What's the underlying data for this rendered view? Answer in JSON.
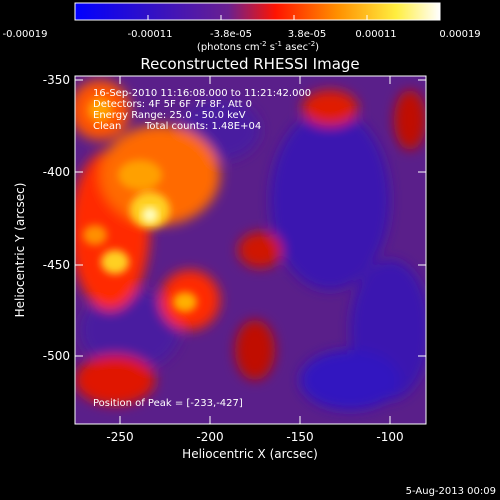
{
  "colorbar": {
    "tick_labels": [
      "-0.00019",
      "-0.00011",
      "-3.8e-05",
      "3.8e-05",
      "0.00011",
      "0.00019"
    ],
    "unit_line1": "(photons cm",
    "unit_exp1": "-2",
    "unit_mid": " s",
    "unit_exp2": "-1",
    "unit_mid2": " asec",
    "unit_exp3": "-2",
    "unit_end": ")"
  },
  "plot": {
    "title": "Reconstructed RHESSI Image",
    "xlabel": "Heliocentric X (arcsec)",
    "ylabel": "Heliocentric Y (arcsec)",
    "x_ticks": [
      "-250",
      "-200",
      "-150",
      "-100"
    ],
    "y_ticks": [
      "-350",
      "-400",
      "-450",
      "-500"
    ],
    "xlim": [
      -275,
      -80
    ],
    "ylim": [
      -538,
      -345
    ]
  },
  "annotations": {
    "line1": "16-Sep-2010 11:16:08.000 to 11:21:42.000",
    "line2": "Detectors: 4F 5F 6F 7F 8F, Att 0",
    "line3": "Energy Range: 25.0 - 50.0 keV",
    "line4_a": "Clean",
    "line4_b": "Total counts: 1.48E+04",
    "peak": "Position of Peak = [-233,-427]"
  },
  "footer": {
    "date": "5-Aug-2013 00:09"
  },
  "colors": {
    "background": "#000000",
    "colorbar_stops": [
      "#0000ff",
      "#3a10c0",
      "#702080",
      "#ff1a00",
      "#ffa000",
      "#ffff60",
      "#ffffff"
    ]
  }
}
